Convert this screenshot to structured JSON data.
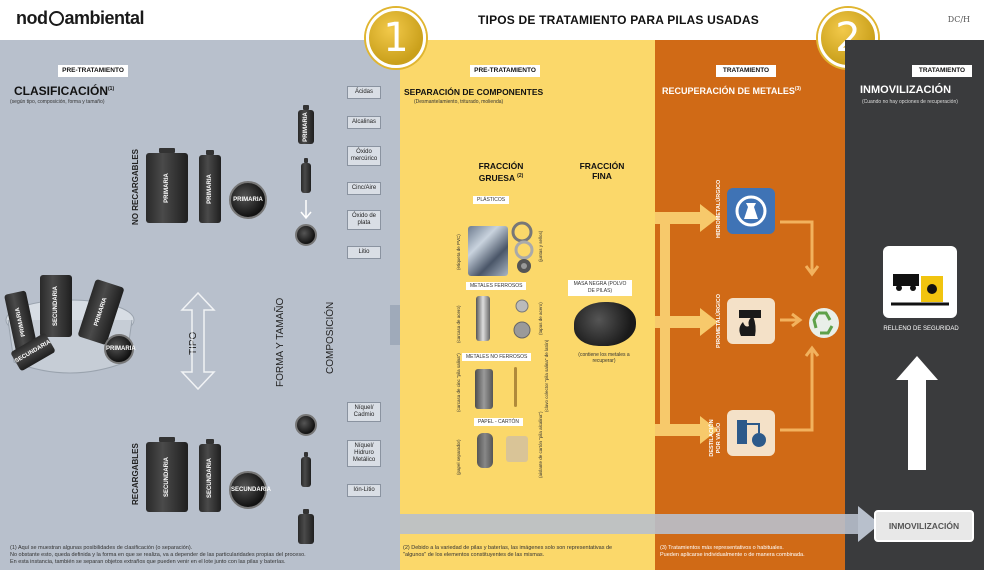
{
  "header": {
    "logo_text": "nodocambiental",
    "logo_pre": "nod",
    "logo_post": "ambiental",
    "title": "TIPOS DE TRATAMIENTO PARA PILAS USADAS",
    "corner_code": "DC/H"
  },
  "colors": {
    "gray_panel": "#b8c0cc",
    "yellow_panel": "#fbd86a",
    "orange_panel": "#d06a16",
    "dark_panel": "#3a3b3d",
    "badge_gold": "#e0b530"
  },
  "badges": [
    "1",
    "2"
  ],
  "clasificacion": {
    "tag": "PRE-TRATAMIENTO",
    "title": "CLASIFICACIÓN",
    "footnote_mark": "(1)",
    "subtitle": "(según tipo, composición, forma y tamaño)",
    "no_recargables": "NO RECARGABLES",
    "recargables": "RECARGABLES",
    "tipo": "TIPO",
    "forma_tamano": "FORMA Y TAMAÑO",
    "composicion": "COMPOSICIÓN",
    "primaria": "PRIMARIA",
    "secundaria": "SECUNDARIA",
    "composition_items": [
      "Ácidas",
      "Alcalinas",
      "Óxido mercúrico",
      "Cinc/Aire",
      "Óxido de plata",
      "Litio",
      "Níquel/ Cadmio",
      "Níquel/ Hidruro Metálico",
      "Ión-Litio"
    ]
  },
  "separacion": {
    "tag": "PRE-TRATAMIENTO",
    "title": "SEPARACIÓN DE COMPONENTES",
    "subtitle": "(Desmantelamiento, triturado, molienda)",
    "fraccion_gruesa": "FRACCIÓN GRUESA",
    "gruesa_mark": "(2)",
    "fraccion_fina": "FRACCIÓN FINA",
    "plasticos": "PLÁSTICOS",
    "metales_ferrosos": "METALES FERROSOS",
    "metales_no_ferrosos": "METALES NO FERROSOS",
    "papel_carton": "PAPEL - CARTÓN",
    "masa_negra": "MASA NEGRA (POLVO DE PILAS)",
    "masa_note": "(contiene los metales a recuperar)",
    "side_notes": [
      "(etiqueta de PVC)",
      "(juntas y sellos)",
      "(carcasa de acero)",
      "(tapas de acero)",
      "(carcasa de cinc \"pila salina\")",
      "(clavo colector \"pila salina\" de latón)",
      "(papel separador)",
      "(aislante de cartón \"pila alcalina\")"
    ]
  },
  "recuperacion": {
    "tag": "TRATAMIENTO",
    "title": "RECUPERACIÓN DE METALES",
    "mark": "(3)",
    "processes": [
      "HIDROMETALÚRGICO",
      "PIROMETALÚRGICO",
      "DESTILACIÓN POR VACÍO"
    ]
  },
  "inmovilizacion": {
    "tag": "TRATAMIENTO",
    "title": "INMOVILIZACIÓN",
    "subtitle": "(Cuando no hay opciones de recuperación)",
    "relleno": "RELLENO DE SEGURIDAD",
    "button": "INMOVILIZACIÓN"
  },
  "notes": {
    "note1_line1": "(1) Aquí se muestran algunas posibilidades de clasificación (o separación).",
    "note1_line2": "No obstante esto, queda definida y la forma en que se realiza, va a depender de las particularidades propias del proceso.",
    "note1_line3": "En esta instancia, también se separan objetos extraños que pueden venir en el lote junto con las pilas y baterías.",
    "note2_line1": "(2) Debido a la variedad de pilas y baterías, las imágenes solo son representativas de",
    "note2_line2": "\"algunos\" de los elementos constituyentes de las mismas.",
    "note3_line1": "(3) Tratamientos más representativos o habituales.",
    "note3_line2": "Pueden aplicarse individualmente o de manera combinada."
  }
}
